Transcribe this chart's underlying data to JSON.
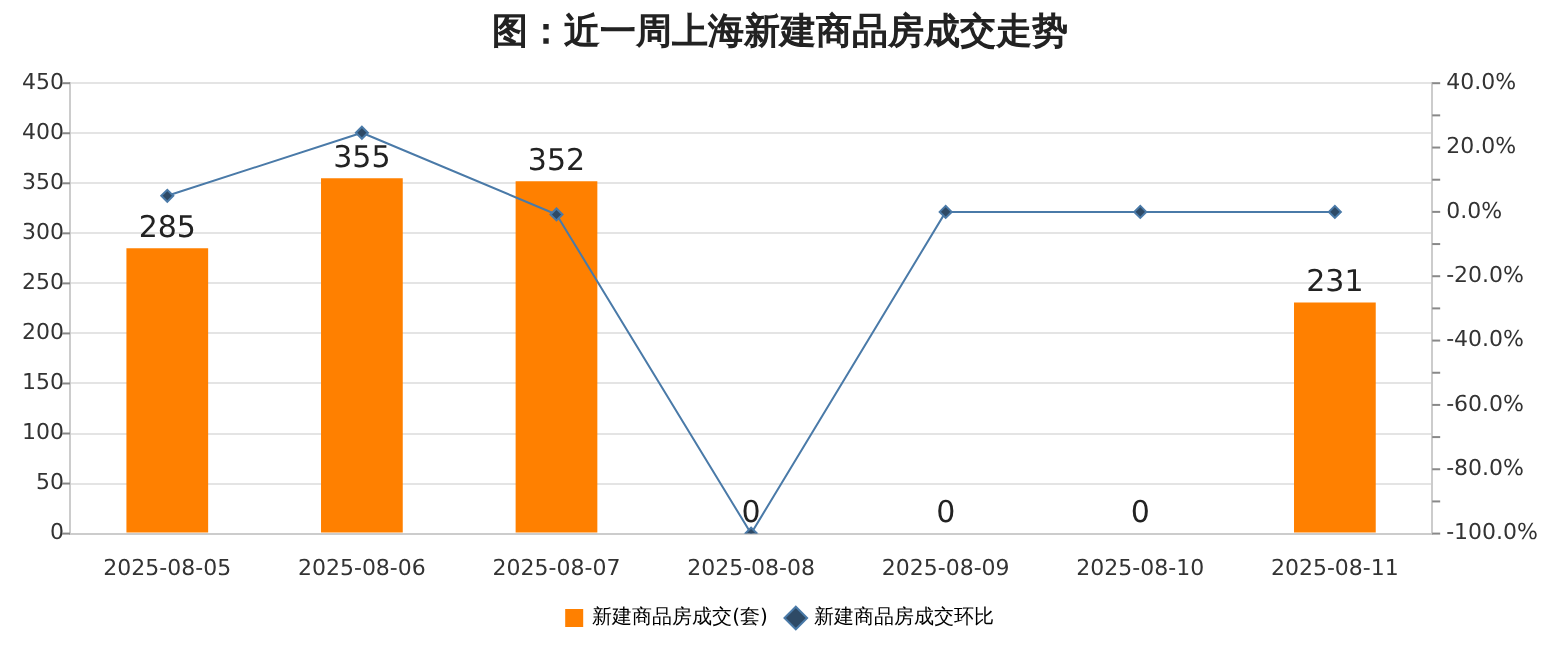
{
  "chart_data": {
    "type": "bar",
    "title": "图：近一周上海新建商品房成交走势",
    "categories": [
      "2025-08-05",
      "2025-08-06",
      "2025-08-07",
      "2025-08-08",
      "2025-08-09",
      "2025-08-10",
      "2025-08-11"
    ],
    "series": [
      {
        "name": "新建商品房成交(套)",
        "color": "#ff8000",
        "values": [
          285,
          355,
          352,
          0,
          0,
          0,
          231
        ],
        "value_labels": [
          "285",
          "355",
          "352",
          "0",
          "0",
          "0",
          "231"
        ]
      },
      {
        "name": "新建商品房成交环比",
        "type": "line",
        "axis": "y2",
        "color": "#4a7aa8",
        "marker": "diamond",
        "values": [
          5,
          24.6,
          -0.8,
          -100,
          0,
          0,
          0
        ]
      }
    ],
    "ylim": [
      0,
      450
    ],
    "yticks": [
      0,
      50,
      100,
      150,
      200,
      250,
      300,
      350,
      400,
      450
    ],
    "y2lim": [
      -100,
      40
    ],
    "y2ticks": [
      {
        "value": -100,
        "label": "-100.0%"
      },
      {
        "value": -90,
        "label": null
      },
      {
        "value": -80,
        "label": "-80.0%"
      },
      {
        "value": -70,
        "label": null
      },
      {
        "value": -60,
        "label": "-60.0%"
      },
      {
        "value": -50,
        "label": null
      },
      {
        "value": -40,
        "label": "-40.0%"
      },
      {
        "value": -30,
        "label": null
      },
      {
        "value": -20,
        "label": "-20.0%"
      },
      {
        "value": -10,
        "label": null
      },
      {
        "value": 0,
        "label": "0.0%"
      },
      {
        "value": 10,
        "label": null
      },
      {
        "value": 20,
        "label": "20.0%"
      },
      {
        "value": 30,
        "label": null
      },
      {
        "value": 40,
        "label": "40.0%"
      }
    ],
    "grid": "y",
    "legend": "bottom"
  }
}
